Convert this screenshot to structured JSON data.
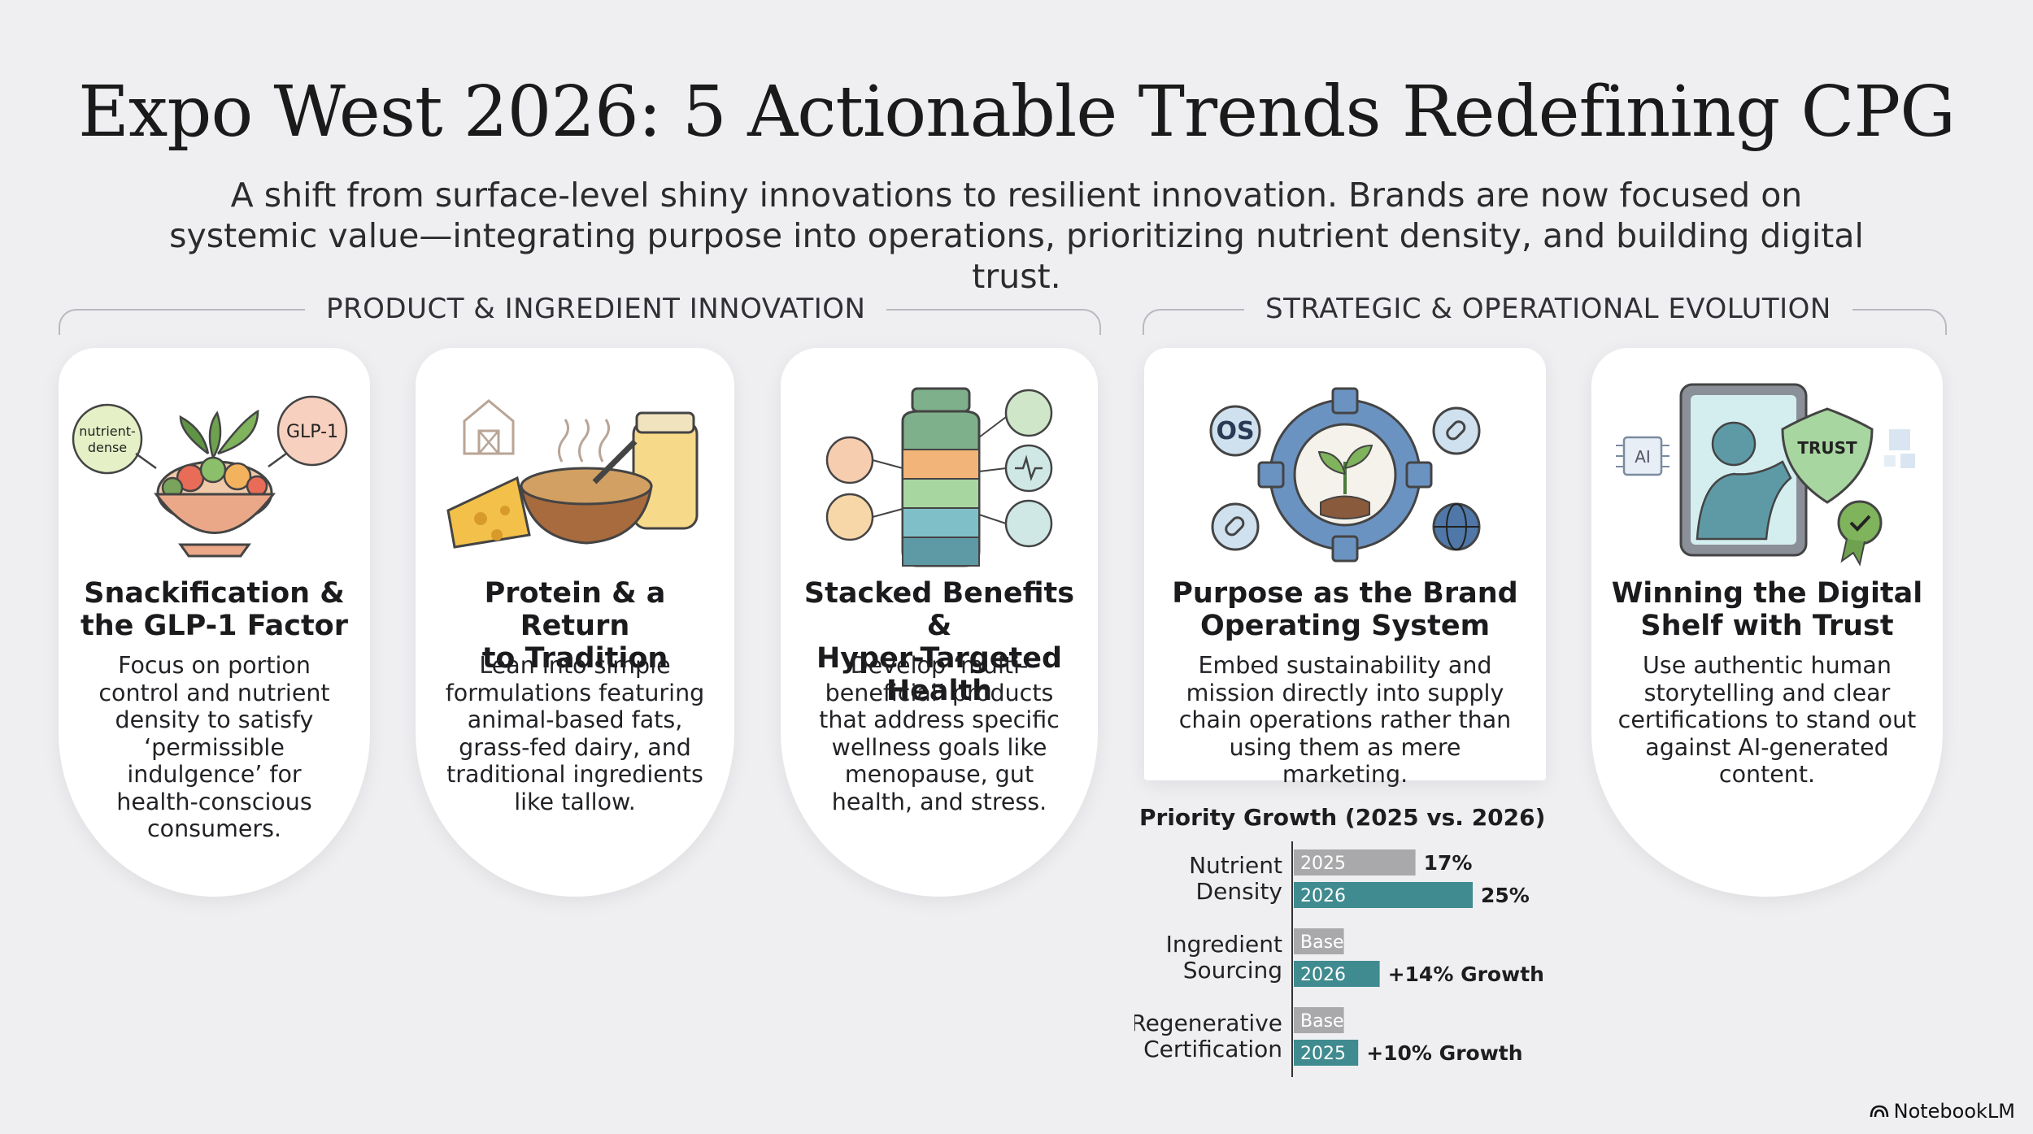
{
  "title": "Expo West 2026: 5 Actionable Trends Redefining CPG",
  "subtitle": "A shift from surface-level shiny innovations to resilient innovation. Brands are now focused on systemic value—integrating purpose into operations, prioritizing nutrient density, and building digital trust.",
  "sections": {
    "left": "PRODUCT & INGREDIENT INNOVATION",
    "right": "STRATEGIC & OPERATIONAL EVOLUTION"
  },
  "cards": [
    {
      "title_line1": "Snackification &",
      "title_line2": "the GLP-1 Factor",
      "body": "Focus on portion control and nutrient density to satisfy ‘permissible indulgence’ for health-conscious consumers.",
      "illustration": "salad-bowl-icon",
      "tag_a": "nutrient-",
      "tag_b": "dense",
      "tag_c": "GLP-1"
    },
    {
      "title_line1": "Protein & a Return",
      "title_line2": "to Tradition",
      "body": "Lean into simple formulations featuring animal-based fats, grass-fed dairy, and traditional ingredients like tallow.",
      "illustration": "barn-cheese-bowl-icon"
    },
    {
      "title_line1": "Stacked Benefits &",
      "title_line2": "Hyper-Targeted Health",
      "body": "Develop ‘multi-beneficial’ products that address specific wellness goals like menopause, gut health, and stress.",
      "illustration": "layered-bottle-icon"
    },
    {
      "title_line1": "Purpose as the Brand",
      "title_line2": "Operating System",
      "body": "Embed sustainability and mission directly into supply chain operations rather than using them as mere marketing.",
      "illustration": "gear-sprout-icon",
      "tag_os": "OS"
    },
    {
      "title_line1": "Winning the Digital",
      "title_line2": "Shelf with Trust",
      "body": "Use authentic human storytelling and clear certifications to stand out against AI-generated content.",
      "illustration": "tablet-trust-shield-icon",
      "tag_trust": "TRUST",
      "tag_ai": "AI"
    }
  ],
  "chart_data": {
    "type": "bar",
    "orientation": "horizontal",
    "title": "Priority Growth (2025 vs. 2026)",
    "categories": [
      {
        "line1": "Nutrient",
        "line2": "Density"
      },
      {
        "line1": "Ingredient",
        "line2": "Sourcing"
      },
      {
        "line1": "Regenerative",
        "line2": "Certification"
      }
    ],
    "bars": [
      {
        "group": 0,
        "label": "2025",
        "value": 17,
        "annotation": "17%",
        "color": "#a9a9ab"
      },
      {
        "group": 0,
        "label": "2026",
        "value": 25,
        "annotation": "25%",
        "color": "#3f8b8f"
      },
      {
        "group": 1,
        "label": "Base",
        "value": 7,
        "annotation": "",
        "color": "#a9a9ab"
      },
      {
        "group": 1,
        "label": "2026",
        "value": 12,
        "annotation": "+14% Growth",
        "color": "#3f8b8f"
      },
      {
        "group": 2,
        "label": "Base",
        "value": 7,
        "annotation": "",
        "color": "#a9a9ab"
      },
      {
        "group": 2,
        "label": "2025",
        "value": 9,
        "annotation": "+10% Growth",
        "color": "#3f8b8f"
      }
    ],
    "xlim": [
      0,
      25
    ]
  },
  "brand": "NotebookLM",
  "colors": {
    "teal": "#3f8b8f",
    "grey_bar": "#a9a9ab",
    "background": "#efeff2"
  }
}
